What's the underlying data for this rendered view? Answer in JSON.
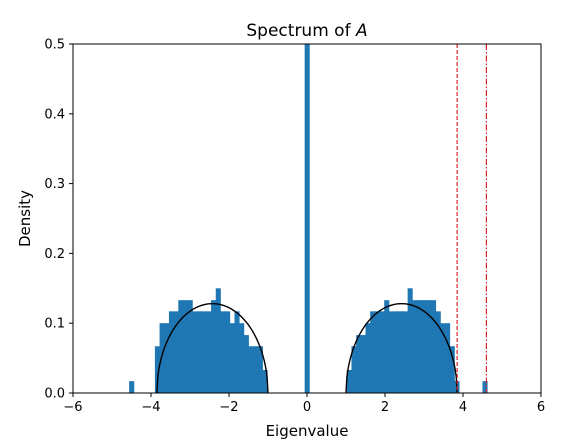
{
  "chart_data": {
    "type": "bar",
    "title": "Spectrum of ",
    "title_symbol": "A",
    "xlabel": "Eigenvalue",
    "ylabel": "Density",
    "xlim": [
      -6,
      6
    ],
    "ylim": [
      0,
      0.5
    ],
    "xticks": [
      -6,
      -4,
      -2,
      0,
      2,
      4,
      6
    ],
    "xtick_labels": [
      "−6",
      "−4",
      "−2",
      "0",
      "2",
      "4",
      "6"
    ],
    "yticks": [
      0,
      0.1,
      0.2,
      0.3,
      0.4,
      0.5
    ],
    "ytick_labels": [
      "0.0",
      "0.1",
      "0.2",
      "0.3",
      "0.4",
      "0.5"
    ],
    "grid": false,
    "bar_color": "#1f77b4",
    "histogram": {
      "bin_width": 0.12,
      "bins": [
        {
          "x": -4.56,
          "h": 0.017
        },
        {
          "x": -3.9,
          "h": 0.067
        },
        {
          "x": -3.78,
          "h": 0.1
        },
        {
          "x": -3.66,
          "h": 0.1
        },
        {
          "x": -3.54,
          "h": 0.117
        },
        {
          "x": -3.42,
          "h": 0.117
        },
        {
          "x": -3.3,
          "h": 0.133
        },
        {
          "x": -3.18,
          "h": 0.133
        },
        {
          "x": -3.06,
          "h": 0.133
        },
        {
          "x": -2.94,
          "h": 0.117
        },
        {
          "x": -2.82,
          "h": 0.117
        },
        {
          "x": -2.7,
          "h": 0.117
        },
        {
          "x": -2.58,
          "h": 0.117
        },
        {
          "x": -2.46,
          "h": 0.133
        },
        {
          "x": -2.34,
          "h": 0.15
        },
        {
          "x": -2.22,
          "h": 0.117
        },
        {
          "x": -2.1,
          "h": 0.117
        },
        {
          "x": -1.98,
          "h": 0.1
        },
        {
          "x": -1.86,
          "h": 0.117
        },
        {
          "x": -1.74,
          "h": 0.1
        },
        {
          "x": -1.62,
          "h": 0.083
        },
        {
          "x": -1.5,
          "h": 0.067
        },
        {
          "x": -1.38,
          "h": 0.067
        },
        {
          "x": -1.26,
          "h": 0.067
        },
        {
          "x": -1.14,
          "h": 0.033
        },
        {
          "x": -0.06,
          "h": 0.5
        },
        {
          "x": 1.02,
          "h": 0.033
        },
        {
          "x": 1.14,
          "h": 0.067
        },
        {
          "x": 1.26,
          "h": 0.083
        },
        {
          "x": 1.38,
          "h": 0.083
        },
        {
          "x": 1.5,
          "h": 0.1
        },
        {
          "x": 1.62,
          "h": 0.117
        },
        {
          "x": 1.74,
          "h": 0.117
        },
        {
          "x": 1.86,
          "h": 0.117
        },
        {
          "x": 1.98,
          "h": 0.133
        },
        {
          "x": 2.1,
          "h": 0.117
        },
        {
          "x": 2.22,
          "h": 0.117
        },
        {
          "x": 2.34,
          "h": 0.117
        },
        {
          "x": 2.46,
          "h": 0.117
        },
        {
          "x": 2.58,
          "h": 0.15
        },
        {
          "x": 2.7,
          "h": 0.133
        },
        {
          "x": 2.82,
          "h": 0.133
        },
        {
          "x": 2.94,
          "h": 0.133
        },
        {
          "x": 3.06,
          "h": 0.133
        },
        {
          "x": 3.18,
          "h": 0.133
        },
        {
          "x": 3.3,
          "h": 0.117
        },
        {
          "x": 3.42,
          "h": 0.1
        },
        {
          "x": 3.54,
          "h": 0.1
        },
        {
          "x": 3.66,
          "h": 0.067
        },
        {
          "x": 3.78,
          "h": 0.017
        },
        {
          "x": 4.5,
          "h": 0.017
        }
      ]
    },
    "density_curves": [
      {
        "color": "#000000",
        "x_range": [
          -3.85,
          -1.0
        ]
      },
      {
        "color": "#000000",
        "x_range": [
          1.0,
          3.85
        ]
      }
    ],
    "vlines": [
      {
        "x": 3.85,
        "style": "dashed",
        "color": "#d62728"
      },
      {
        "x": 4.6,
        "style": "dashdot",
        "color": "#d62728"
      }
    ]
  }
}
